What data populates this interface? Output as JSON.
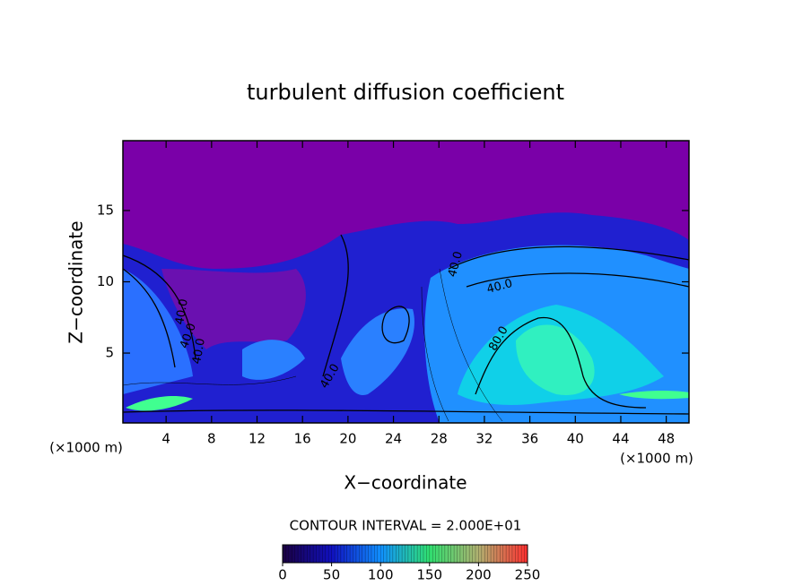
{
  "chart_data": {
    "type": "contour",
    "title": "turbulent diffusion coefficient",
    "xlabel": "X−coordinate",
    "ylabel": "Z−coordinate",
    "x_unit_label": "(×1000 m)",
    "x_unit_label_right": "(×1000 m)",
    "xlim": [
      0.2,
      50
    ],
    "xticks": [
      4,
      8,
      12,
      16,
      20,
      24,
      28,
      32,
      36,
      40,
      44,
      48
    ],
    "ylim": [
      0.1,
      19.9
    ],
    "yticks": [
      5,
      10,
      15
    ],
    "contour_labels": [
      "40.0",
      "40.0",
      "40.0",
      "40.0",
      "40.0",
      "40.0",
      "80.0"
    ],
    "contour_interval": "CONTOUR INTERVAL = 2.000E+01",
    "colorbar": {
      "clim": [
        0,
        250
      ],
      "ticks": [
        0,
        50,
        100,
        150,
        200,
        250
      ],
      "colors": [
        "#1a0040",
        "#1010c0",
        "#1090ff",
        "#30e070",
        "#b0b070",
        "#ff3030"
      ]
    }
  }
}
